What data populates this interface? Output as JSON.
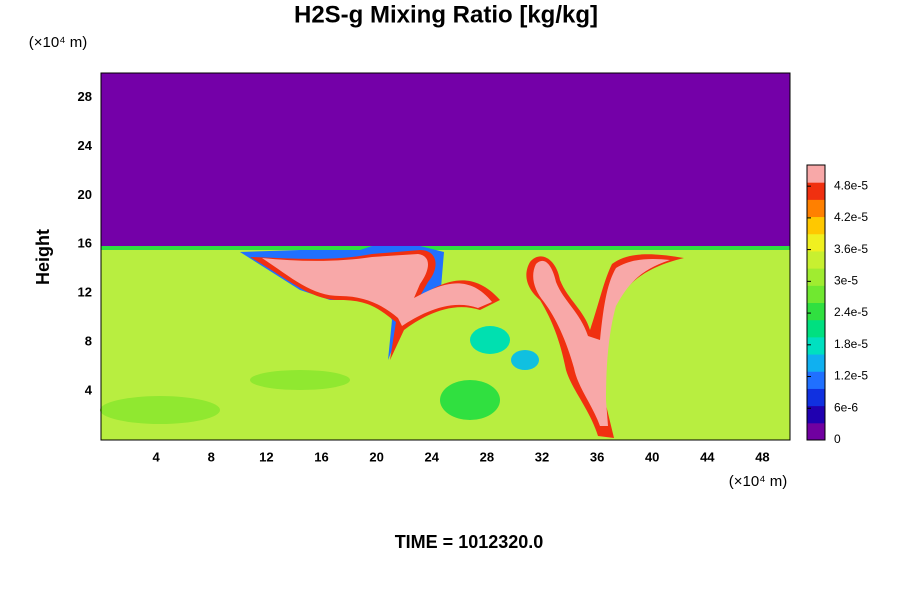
{
  "chart_data": {
    "type": "heatmap",
    "title": "H2S-g Mixing Ratio [kg/kg]",
    "y_label": "Height",
    "x_unit_label": "(×10⁴ m)",
    "y_unit_label": "(×10⁴ m)",
    "time_label": "TIME = 1012320.0",
    "xlim": [
      0,
      50
    ],
    "xticks": [
      4,
      8,
      12,
      16,
      20,
      24,
      28,
      32,
      36,
      40,
      44,
      48
    ],
    "ylim": [
      0,
      30
    ],
    "yticks": [
      4,
      8,
      12,
      16,
      20,
      24,
      28
    ],
    "clim": [
      0,
      5.2e-05
    ],
    "cticks": [
      0,
      {
        "value": 6e-06,
        "label": "6e-6"
      },
      {
        "value": 1.2e-05,
        "label": "1.2e-5"
      },
      {
        "value": 1.8e-05,
        "label": "1.8e-5"
      },
      {
        "value": 2.4e-05,
        "label": "2.4e-5"
      },
      {
        "value": 3e-05,
        "label": "3e-5"
      },
      {
        "value": 3.6e-05,
        "label": "3.6e-5"
      },
      {
        "value": 4.2e-05,
        "label": "4.2e-5"
      },
      {
        "value": 4.8e-05,
        "label": "4.8e-5"
      }
    ],
    "colormap": [
      "#7000a0",
      "#2000b0",
      "#1030e0",
      "#2070ff",
      "#10b0f0",
      "#00e0c0",
      "#00e080",
      "#30e040",
      "#70e830",
      "#a0ec30",
      "#c8f030",
      "#f0f020",
      "#ffc800",
      "#ff8000",
      "#f03010",
      "#f8a8a8"
    ]
  }
}
